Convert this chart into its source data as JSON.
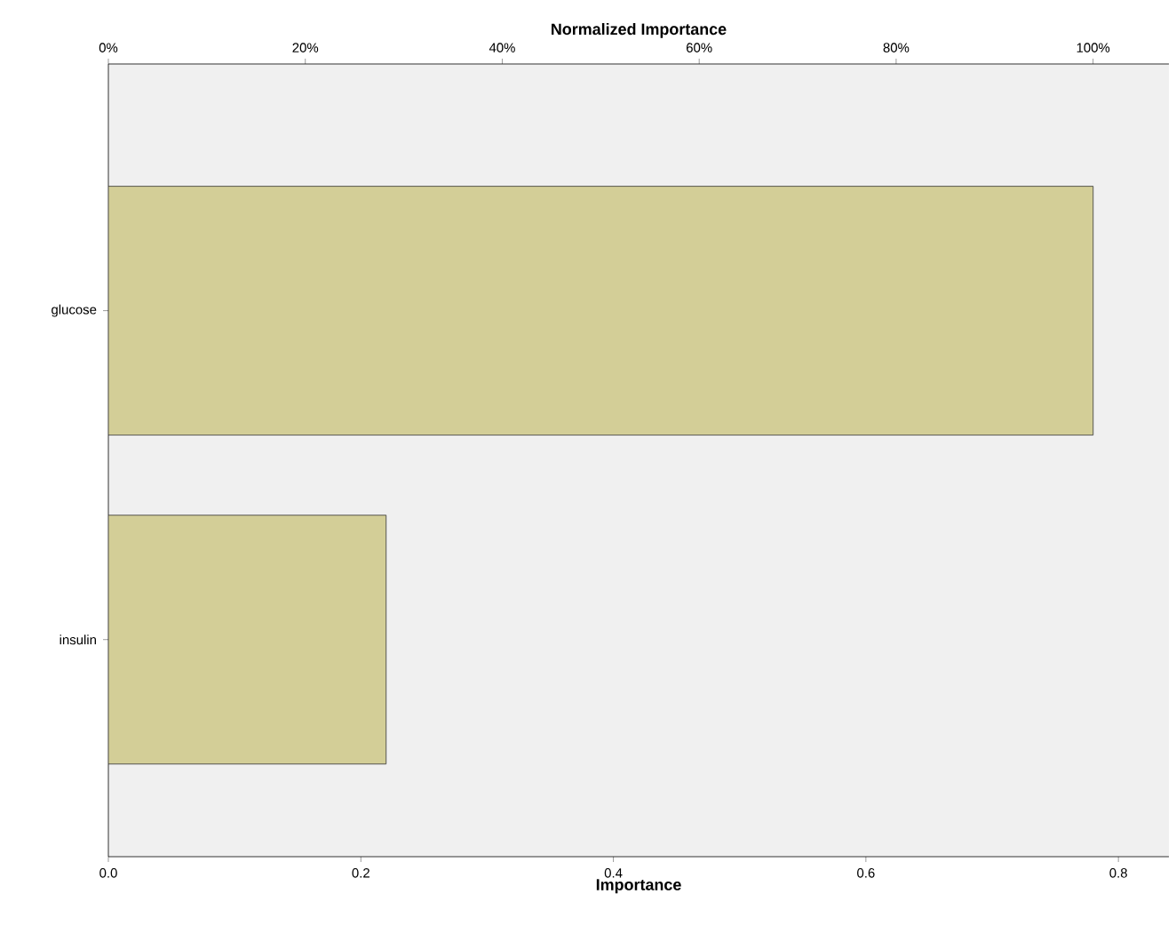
{
  "chart_data": {
    "type": "bar",
    "orientation": "horizontal",
    "categories": [
      "glucose",
      "insulin"
    ],
    "values": [
      0.78,
      0.22
    ],
    "color": "#d3ce97",
    "xlabel": "Importance",
    "x2label": "Normalized Importance",
    "xlim": [
      0,
      0.84
    ],
    "xticks": [
      {
        "value": 0,
        "label": "0.0"
      },
      {
        "value": 0.2,
        "label": "0.2"
      },
      {
        "value": 0.4,
        "label": "0.4"
      },
      {
        "value": 0.6,
        "label": "0.6"
      },
      {
        "value": 0.8,
        "label": "0.8"
      }
    ],
    "x2lim": [
      0,
      107.7
    ],
    "x2ticks": [
      {
        "value": 0,
        "label": "0%"
      },
      {
        "value": 20,
        "label": "20%"
      },
      {
        "value": 40,
        "label": "40%"
      },
      {
        "value": 60,
        "label": "60%"
      },
      {
        "value": 80,
        "label": "80%"
      },
      {
        "value": 100,
        "label": "100%"
      }
    ],
    "grid": false
  }
}
